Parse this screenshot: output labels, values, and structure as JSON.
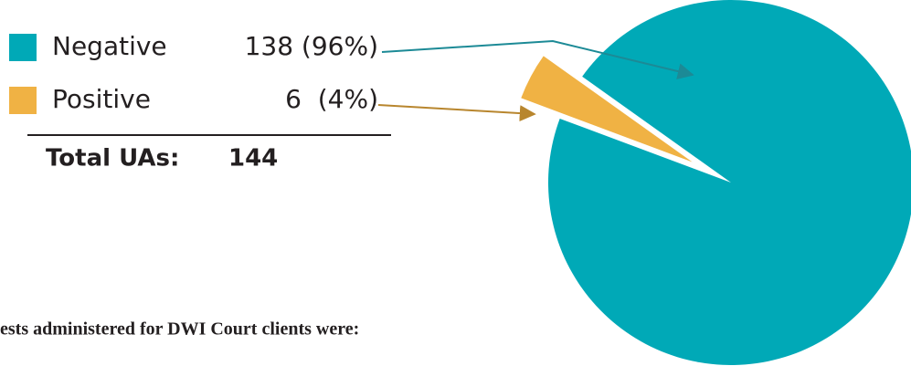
{
  "chart_data": {
    "type": "pie",
    "categories": [
      "Negative",
      "Positive"
    ],
    "values": [
      138,
      6
    ],
    "value_labels": [
      "138 (96%)",
      "6  (4%)"
    ],
    "colors": [
      "#00a9b7",
      "#f0b244"
    ],
    "total_label": "Total UAs:",
    "total": 144,
    "caption": "ests administered for DWI Court clients were:"
  }
}
